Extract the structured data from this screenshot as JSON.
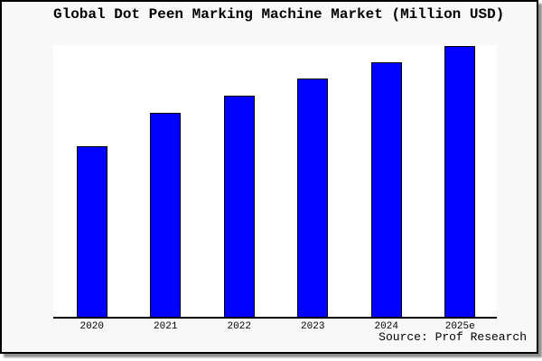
{
  "frame": {
    "background": "#f8f8f8",
    "plot_background": "#ffffff",
    "border_color": "#000000",
    "shadow_color": "#8f8f8f"
  },
  "chart_data": {
    "type": "bar",
    "title": "Global Dot Peen Marking Machine Market (Million USD)",
    "categories": [
      "2020",
      "2021",
      "2022",
      "2023",
      "2024",
      "2025e"
    ],
    "values": [
      189,
      226,
      245,
      264,
      282,
      300
    ],
    "value_scale_note": "y-axis has no tick labels; values are relative heights estimated from the plot",
    "ylim": [
      0,
      301
    ],
    "xlabel": "",
    "ylabel": "",
    "grid": false,
    "legend": false,
    "y_axis_labels_visible": false,
    "bar_color": "#0000ff",
    "bar_edge_color": "#000000",
    "axis_line_color": "#000000"
  },
  "footer": {
    "source_label": "Source: Prof Research"
  }
}
